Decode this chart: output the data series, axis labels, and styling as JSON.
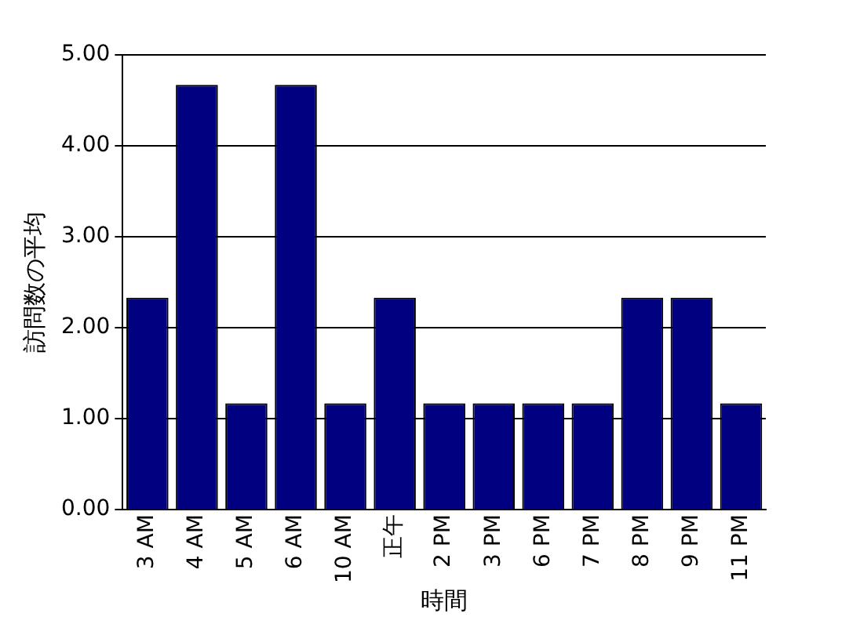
{
  "chart_data": {
    "type": "bar",
    "categories": [
      "3 AM",
      "4 AM",
      "5 AM",
      "6 AM",
      "10 AM",
      "正午",
      "2 PM",
      "3 PM",
      "6 PM",
      "7 PM",
      "8 PM",
      "9 PM",
      "11 PM"
    ],
    "values": [
      2.33,
      4.67,
      1.17,
      4.67,
      1.17,
      2.33,
      1.17,
      1.17,
      1.17,
      1.17,
      2.33,
      2.33,
      1.17
    ],
    "color": "#000080",
    "xlabel": "時間",
    "ylabel": "訪問数の平均",
    "ylim": [
      0,
      5
    ],
    "yticks": [
      {
        "value": 0,
        "label": "0.00"
      },
      {
        "value": 1,
        "label": "1.00"
      },
      {
        "value": 2,
        "label": "2.00"
      },
      {
        "value": 3,
        "label": "3.00"
      },
      {
        "value": 4,
        "label": "4.00"
      },
      {
        "value": 5,
        "label": "5.00"
      }
    ],
    "grid": "y",
    "legend": false
  }
}
